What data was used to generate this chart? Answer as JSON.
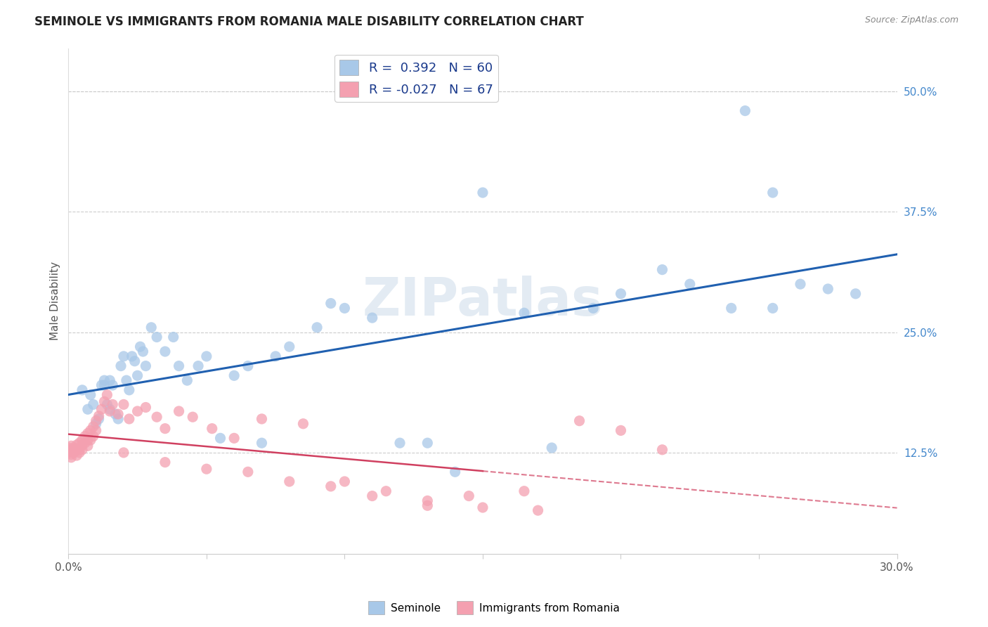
{
  "title": "SEMINOLE VS IMMIGRANTS FROM ROMANIA MALE DISABILITY CORRELATION CHART",
  "source": "Source: ZipAtlas.com",
  "ylabel": "Male Disability",
  "ytick_labels": [
    "12.5%",
    "25.0%",
    "37.5%",
    "50.0%"
  ],
  "ytick_values": [
    0.125,
    0.25,
    0.375,
    0.5
  ],
  "xlim": [
    0.0,
    0.3
  ],
  "ylim": [
    0.02,
    0.545
  ],
  "watermark": "ZIPatlas",
  "seminole_R": 0.392,
  "seminole_N": 60,
  "romania_R": -0.027,
  "romania_N": 67,
  "seminole_color": "#a8c8e8",
  "romania_color": "#f4a0b0",
  "seminole_line_color": "#2060b0",
  "romania_line_color": "#d04060",
  "seminole_x": [
    0.005,
    0.007,
    0.008,
    0.009,
    0.01,
    0.011,
    0.012,
    0.013,
    0.013,
    0.014,
    0.015,
    0.015,
    0.016,
    0.017,
    0.018,
    0.019,
    0.02,
    0.021,
    0.022,
    0.023,
    0.024,
    0.025,
    0.026,
    0.027,
    0.028,
    0.03,
    0.032,
    0.035,
    0.038,
    0.04,
    0.043,
    0.047,
    0.05,
    0.055,
    0.06,
    0.065,
    0.07,
    0.075,
    0.08,
    0.09,
    0.095,
    0.1,
    0.11,
    0.12,
    0.13,
    0.14,
    0.15,
    0.165,
    0.175,
    0.19,
    0.2,
    0.215,
    0.225,
    0.24,
    0.255,
    0.265,
    0.275,
    0.285,
    0.255,
    0.245
  ],
  "seminole_y": [
    0.19,
    0.17,
    0.185,
    0.175,
    0.155,
    0.16,
    0.195,
    0.2,
    0.195,
    0.175,
    0.2,
    0.17,
    0.195,
    0.165,
    0.16,
    0.215,
    0.225,
    0.2,
    0.19,
    0.225,
    0.22,
    0.205,
    0.235,
    0.23,
    0.215,
    0.255,
    0.245,
    0.23,
    0.245,
    0.215,
    0.2,
    0.215,
    0.225,
    0.14,
    0.205,
    0.215,
    0.135,
    0.225,
    0.235,
    0.255,
    0.28,
    0.275,
    0.265,
    0.135,
    0.135,
    0.105,
    0.395,
    0.27,
    0.13,
    0.275,
    0.29,
    0.315,
    0.3,
    0.275,
    0.395,
    0.3,
    0.295,
    0.29,
    0.275,
    0.48
  ],
  "romania_x": [
    0.0,
    0.0,
    0.0,
    0.001,
    0.001,
    0.001,
    0.001,
    0.002,
    0.002,
    0.002,
    0.003,
    0.003,
    0.003,
    0.004,
    0.004,
    0.004,
    0.005,
    0.005,
    0.005,
    0.006,
    0.006,
    0.007,
    0.007,
    0.007,
    0.008,
    0.008,
    0.009,
    0.009,
    0.01,
    0.01,
    0.011,
    0.012,
    0.013,
    0.014,
    0.015,
    0.016,
    0.018,
    0.02,
    0.022,
    0.025,
    0.028,
    0.032,
    0.035,
    0.04,
    0.045,
    0.052,
    0.06,
    0.07,
    0.085,
    0.1,
    0.115,
    0.13,
    0.145,
    0.165,
    0.185,
    0.2,
    0.215,
    0.17,
    0.15,
    0.13,
    0.11,
    0.095,
    0.08,
    0.065,
    0.05,
    0.035,
    0.02
  ],
  "romania_y": [
    0.13,
    0.128,
    0.125,
    0.132,
    0.127,
    0.123,
    0.12,
    0.13,
    0.128,
    0.125,
    0.133,
    0.128,
    0.122,
    0.135,
    0.128,
    0.125,
    0.138,
    0.133,
    0.128,
    0.142,
    0.135,
    0.145,
    0.138,
    0.132,
    0.148,
    0.138,
    0.152,
    0.142,
    0.158,
    0.148,
    0.163,
    0.17,
    0.178,
    0.185,
    0.168,
    0.175,
    0.165,
    0.175,
    0.16,
    0.168,
    0.172,
    0.162,
    0.15,
    0.168,
    0.162,
    0.15,
    0.14,
    0.16,
    0.155,
    0.095,
    0.085,
    0.07,
    0.08,
    0.085,
    0.158,
    0.148,
    0.128,
    0.065,
    0.068,
    0.075,
    0.08,
    0.09,
    0.095,
    0.105,
    0.108,
    0.115,
    0.125
  ]
}
